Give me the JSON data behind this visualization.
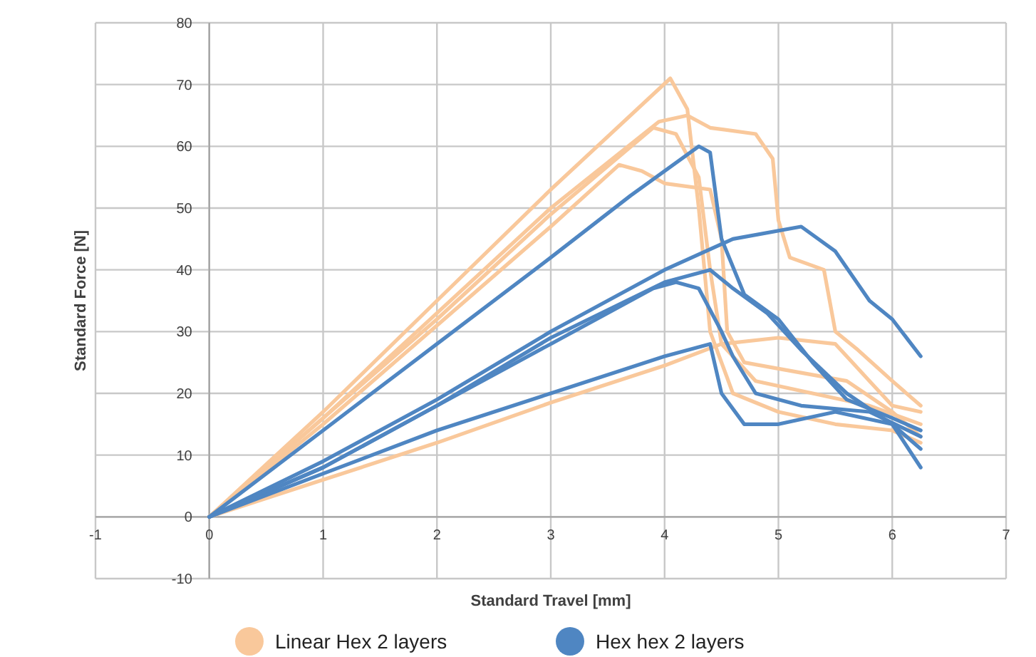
{
  "chart_data": {
    "type": "line",
    "xlabel": "Standard Travel [mm]",
    "ylabel": "Standard Force [N]",
    "xlim": [
      -1,
      7
    ],
    "ylim": [
      -10,
      80
    ],
    "xticks": [
      -1,
      0,
      1,
      2,
      3,
      4,
      5,
      6,
      7
    ],
    "yticks": [
      -10,
      0,
      10,
      20,
      30,
      40,
      50,
      60,
      70,
      80
    ],
    "grid": true,
    "legend": "bottom",
    "marker": "none",
    "line_style": "solid",
    "series": [
      {
        "name": "Linear Hex 2 layers",
        "color": "#f9c89b",
        "x": [
          0,
          1,
          2,
          3,
          4.05,
          4.2,
          4.3,
          4.4,
          4.6,
          5,
          5.5,
          6,
          6.25
        ],
        "values": [
          0,
          17,
          35,
          53,
          71,
          66,
          50,
          30,
          20,
          17,
          15,
          14,
          12
        ]
      },
      {
        "color": "#f9c89b",
        "x": [
          0,
          1,
          2,
          3,
          3.95,
          4.2,
          4.4,
          4.8,
          4.95,
          5,
          5.1,
          5.4,
          5.5,
          5.7,
          6,
          6.25
        ],
        "values": [
          0,
          16,
          33,
          50,
          64,
          65,
          63,
          62,
          58,
          48,
          42,
          40,
          30,
          27,
          22,
          18
        ]
      },
      {
        "color": "#f9c89b",
        "x": [
          0,
          1,
          2,
          3,
          3.9,
          4.1,
          4.3,
          4.4,
          4.5,
          4.8,
          5.3,
          5.8,
          6.25
        ],
        "values": [
          0,
          16,
          32,
          49,
          63,
          62,
          55,
          40,
          28,
          22,
          20,
          18,
          15
        ]
      },
      {
        "color": "#f9c89b",
        "x": [
          0,
          1,
          2,
          3,
          3.6,
          3.8,
          4,
          4.4,
          4.5,
          4.55,
          4.7,
          5,
          5.6,
          6,
          6.25
        ],
        "values": [
          0,
          15,
          31,
          47,
          57,
          56,
          54,
          53,
          45,
          30,
          25,
          24,
          22,
          17,
          13
        ]
      },
      {
        "color": "#f9c89b",
        "x": [
          0,
          1,
          2,
          3,
          4,
          4.5,
          5,
          5.5,
          5.8,
          6,
          6.25
        ],
        "values": [
          0,
          6,
          12,
          18.5,
          24.5,
          28,
          29,
          28,
          22,
          18,
          17
        ]
      },
      {
        "name": "Hex hex 2 layers",
        "color": "#4f86c2",
        "x": [
          0,
          1,
          2,
          3,
          3.7,
          4.3,
          4.4,
          4.5,
          4.7,
          5,
          5.3,
          5.6,
          6,
          6.25
        ],
        "values": [
          0,
          14,
          28,
          42,
          52,
          60,
          59,
          45,
          36,
          32,
          25,
          19,
          16,
          14
        ]
      },
      {
        "color": "#4f86c2",
        "x": [
          0,
          1,
          2,
          3,
          4,
          4.6,
          5.2,
          5.5,
          5.8,
          6,
          6.25
        ],
        "values": [
          0,
          9,
          19,
          30,
          40,
          45,
          47,
          43,
          35,
          32,
          26
        ]
      },
      {
        "color": "#4f86c2",
        "x": [
          0,
          1,
          2,
          3,
          3.9,
          4.1,
          4.3,
          4.5,
          4.6,
          4.8,
          5.2,
          5.8,
          6.25
        ],
        "values": [
          0,
          8,
          18,
          28,
          37,
          38,
          37,
          30,
          26,
          20,
          18,
          17,
          13
        ]
      },
      {
        "color": "#4f86c2",
        "x": [
          0,
          1,
          2,
          3,
          4,
          4.4,
          4.6,
          4.9,
          5.2,
          5.6,
          6,
          6.25
        ],
        "values": [
          0,
          8,
          18,
          29,
          38,
          40,
          37,
          33,
          27,
          20,
          15,
          8
        ]
      },
      {
        "color": "#4f86c2",
        "x": [
          0,
          1,
          2,
          3,
          4,
          4.4,
          4.5,
          4.7,
          5,
          5.5,
          6,
          6.25
        ],
        "values": [
          0,
          7,
          14,
          20,
          26,
          28,
          20,
          15,
          15,
          17,
          15,
          11
        ]
      }
    ]
  }
}
